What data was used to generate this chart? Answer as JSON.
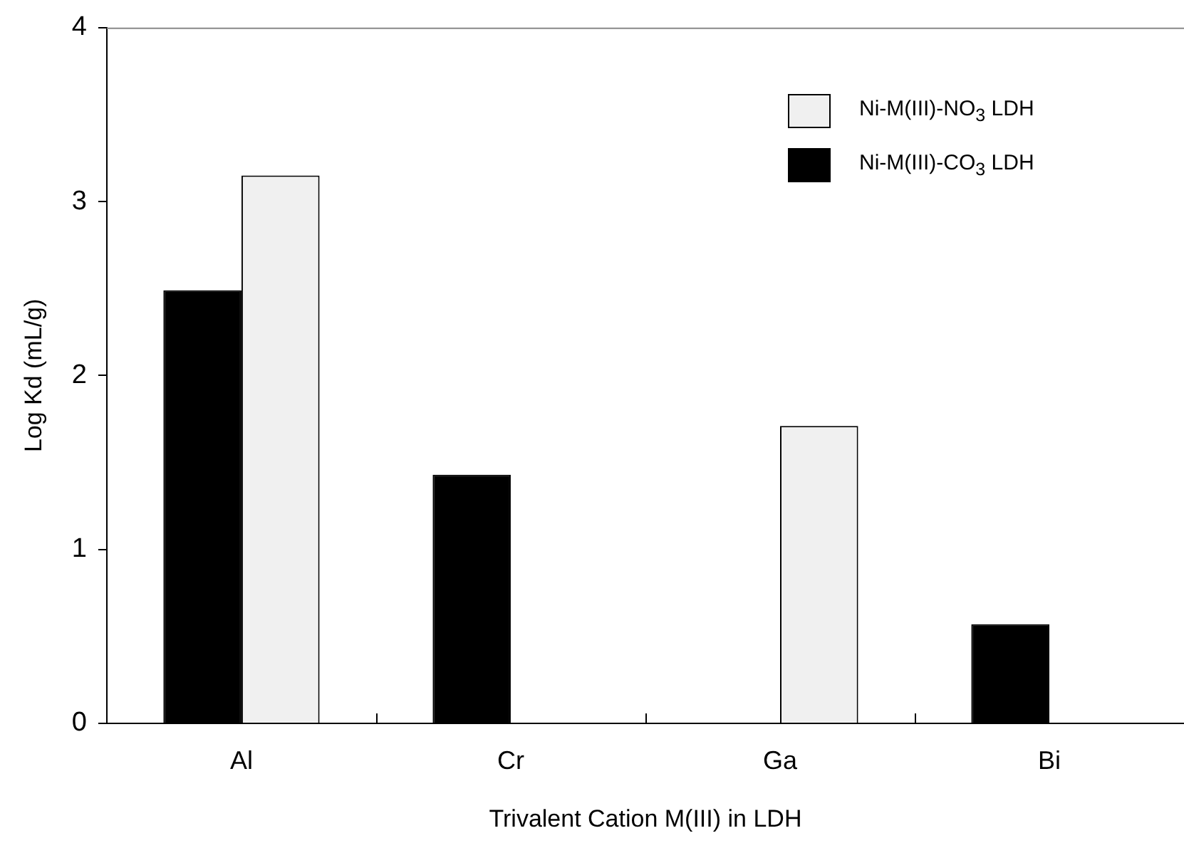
{
  "chart_data": {
    "type": "bar",
    "xlabel": "Trivalent Cation M(III) in LDH",
    "ylabel": "Log Kd (mL/g)",
    "categories": [
      "Al",
      "Cr",
      "Ga",
      "Bi"
    ],
    "series": [
      {
        "name": "Ni-M(III)-CO$_{3}$ LDH",
        "color": "#000000",
        "values": [
          2.49,
          1.43,
          null,
          0.57
        ]
      },
      {
        "name": "Ni-M(III)-NO$_{3}$ LDH",
        "color": "#f0f0f0",
        "values": [
          3.15,
          null,
          1.71,
          null
        ]
      }
    ],
    "ylim": [
      0,
      4
    ],
    "yticks": [
      0,
      1,
      2,
      3,
      4
    ],
    "grid": false,
    "legend": "top right"
  }
}
